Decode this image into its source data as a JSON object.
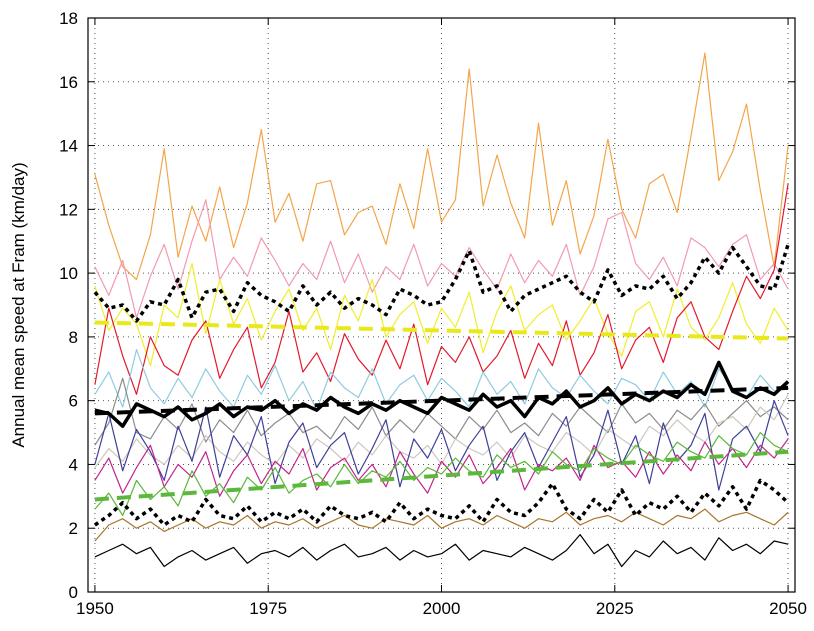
{
  "chart_data": {
    "type": "line",
    "y_label": "Annual mean speed at Fram (km/day)",
    "x": [
      1950,
      1952,
      1954,
      1956,
      1958,
      1960,
      1962,
      1964,
      1966,
      1968,
      1970,
      1972,
      1974,
      1976,
      1978,
      1980,
      1982,
      1984,
      1986,
      1988,
      1990,
      1992,
      1994,
      1996,
      1998,
      2000,
      2002,
      2004,
      2006,
      2008,
      2010,
      2012,
      2014,
      2016,
      2018,
      2020,
      2022,
      2024,
      2026,
      2028,
      2030,
      2032,
      2034,
      2036,
      2038,
      2040,
      2042,
      2044,
      2046,
      2048,
      2050
    ],
    "xlim": [
      1949,
      2051
    ],
    "xticks": [
      1950,
      1975,
      2000,
      2025,
      2050
    ],
    "ylim": [
      0,
      18
    ],
    "yticks": [
      0,
      2,
      4,
      6,
      8,
      10,
      12,
      14,
      16,
      18
    ],
    "grid": true,
    "series": [
      {
        "color": "#f4a54a",
        "style": "thin",
        "values": [
          13.1,
          11.5,
          10.2,
          9.8,
          11.2,
          13.9,
          10.5,
          12.1,
          11.0,
          12.7,
          10.8,
          12.2,
          14.5,
          11.6,
          12.5,
          11.0,
          12.8,
          12.9,
          11.2,
          11.9,
          12.1,
          10.9,
          12.8,
          11.4,
          13.9,
          11.6,
          12.3,
          16.4,
          12.1,
          13.7,
          12.2,
          11.1,
          14.7,
          11.5,
          12.9,
          10.6,
          11.8,
          14.2,
          12.0,
          11.1,
          12.8,
          13.1,
          11.9,
          14.3,
          16.9,
          12.9,
          13.8,
          15.3,
          12.6,
          10.2,
          14.0
        ]
      },
      {
        "color": "#f29ab0",
        "style": "thin",
        "values": [
          10.2,
          9.3,
          10.4,
          8.6,
          9.9,
          10.9,
          9.5,
          11.0,
          12.3,
          9.8,
          10.5,
          9.9,
          11.1,
          10.4,
          9.6,
          10.3,
          9.8,
          11.0,
          9.7,
          10.6,
          9.4,
          10.2,
          9.8,
          10.9,
          9.6,
          10.3,
          9.9,
          10.8,
          10.1,
          9.5,
          10.6,
          9.7,
          10.4,
          9.9,
          10.9,
          9.3,
          10.2,
          11.7,
          11.9,
          10.3,
          9.8,
          10.5,
          9.6,
          11.1,
          10.8,
          10.2,
          10.9,
          11.2,
          9.8,
          10.3,
          9.5
        ]
      },
      {
        "color": "#f0ee2a",
        "style": "thin",
        "values": [
          9.6,
          8.2,
          8.9,
          8.4,
          7.1,
          9.0,
          8.6,
          10.3,
          8.1,
          9.8,
          8.4,
          9.2,
          7.9,
          8.8,
          9.5,
          8.2,
          8.9,
          7.6,
          9.3,
          8.5,
          9.8,
          8.0,
          8.7,
          9.1,
          7.8,
          8.9,
          8.3,
          9.4,
          7.5,
          8.8,
          9.6,
          8.2,
          8.7,
          9.0,
          7.9,
          8.5,
          9.2,
          8.1,
          7.4,
          8.8,
          9.1,
          8.0,
          9.5,
          8.3,
          7.9,
          8.6,
          9.7,
          8.4,
          7.8,
          8.9,
          8.2
        ]
      },
      {
        "color": "#e3192c",
        "style": "thin",
        "values": [
          6.5,
          8.9,
          7.4,
          6.2,
          8.0,
          7.1,
          6.8,
          7.9,
          8.5,
          6.7,
          7.6,
          8.3,
          6.4,
          7.2,
          8.8,
          6.9,
          7.5,
          6.6,
          8.1,
          7.3,
          6.8,
          7.9,
          7.0,
          8.4,
          6.5,
          7.7,
          7.2,
          8.0,
          6.9,
          7.4,
          8.2,
          6.7,
          7.8,
          7.1,
          8.5,
          6.8,
          7.5,
          8.7,
          7.0,
          7.9,
          8.3,
          7.2,
          8.6,
          9.1,
          8.0,
          7.6,
          8.8,
          9.9,
          9.2,
          10.1,
          12.8
        ]
      },
      {
        "color": "#8fcbe0",
        "style": "thin",
        "values": [
          6.2,
          6.9,
          5.8,
          7.6,
          6.4,
          5.9,
          6.7,
          6.1,
          7.0,
          6.3,
          5.8,
          6.8,
          6.2,
          7.1,
          6.0,
          6.6,
          5.7,
          6.9,
          6.4,
          6.1,
          7.0,
          5.9,
          6.5,
          6.8,
          6.0,
          6.7,
          6.3,
          5.8,
          6.9,
          6.2,
          6.6,
          5.9,
          7.0,
          6.4,
          6.1,
          6.8,
          6.3,
          5.9,
          6.7,
          6.5,
          6.0,
          6.9,
          6.2,
          6.6,
          5.8,
          7.0,
          6.4,
          6.1,
          6.8,
          6.3,
          6.5
        ]
      },
      {
        "color": "#8c8c8c",
        "style": "thin",
        "values": [
          4.6,
          5.3,
          6.7,
          5.0,
          4.8,
          5.5,
          5.1,
          5.9,
          4.7,
          5.4,
          5.0,
          5.7,
          4.9,
          5.3,
          5.6,
          5.0,
          5.2,
          4.8,
          5.5,
          5.1,
          5.8,
          4.9,
          5.4,
          5.0,
          5.6,
          5.2,
          4.8,
          5.5,
          5.1,
          5.7,
          5.0,
          5.3,
          4.9,
          5.6,
          5.2,
          5.8,
          5.4,
          5.0,
          5.9,
          5.3,
          5.6,
          5.1,
          5.7,
          5.4,
          5.9,
          5.2,
          5.6,
          6.0,
          5.5,
          5.8,
          5.4
        ]
      },
      {
        "color": "#cfc7bc",
        "style": "thin",
        "values": [
          3.9,
          4.5,
          4.1,
          4.8,
          4.3,
          4.0,
          4.6,
          4.2,
          4.9,
          4.4,
          4.1,
          4.7,
          4.3,
          4.0,
          4.6,
          4.2,
          4.8,
          4.5,
          4.1,
          4.7,
          4.3,
          4.9,
          4.4,
          4.2,
          4.6,
          4.0,
          4.8,
          4.5,
          4.3,
          4.7,
          4.2,
          4.9,
          4.6,
          4.4,
          5.0,
          4.7,
          4.3,
          5.1,
          4.8,
          4.5,
          5.2,
          4.9,
          5.4,
          5.0,
          4.7,
          5.3,
          5.5,
          5.1,
          5.8,
          5.4,
          6.2
        ]
      },
      {
        "color": "#3d3f9a",
        "style": "thin",
        "values": [
          4.0,
          5.6,
          3.8,
          5.1,
          4.4,
          3.5,
          5.2,
          4.1,
          5.8,
          3.6,
          4.9,
          4.3,
          5.5,
          3.4,
          4.7,
          5.3,
          3.9,
          4.6,
          5.0,
          3.7,
          4.5,
          5.4,
          3.3,
          4.8,
          4.2,
          5.1,
          3.8,
          4.6,
          5.2,
          3.5,
          4.4,
          5.0,
          3.9,
          4.7,
          5.5,
          3.6,
          4.3,
          5.7,
          4.0,
          4.9,
          3.4,
          5.3,
          4.1,
          4.6,
          5.6,
          3.2,
          4.8,
          5.2,
          4.4,
          6.0,
          4.9
        ]
      },
      {
        "color": "#c2258c",
        "style": "thin",
        "values": [
          3.5,
          4.2,
          3.1,
          3.9,
          4.6,
          3.3,
          4.0,
          3.6,
          4.4,
          3.0,
          3.8,
          4.3,
          3.4,
          4.1,
          3.7,
          4.5,
          3.2,
          3.9,
          4.2,
          3.5,
          4.0,
          3.3,
          4.4,
          3.7,
          3.1,
          4.1,
          3.6,
          4.3,
          3.4,
          3.9,
          4.5,
          3.2,
          4.0,
          3.8,
          4.2,
          3.5,
          4.6,
          3.9,
          4.1,
          3.6,
          4.4,
          3.7,
          4.3,
          3.8,
          4.7,
          4.0,
          4.5,
          3.9,
          4.6,
          4.2,
          4.8
        ]
      },
      {
        "color": "#5cb83a",
        "style": "thin",
        "values": [
          2.6,
          3.1,
          2.4,
          3.5,
          2.9,
          3.3,
          2.7,
          3.8,
          3.0,
          3.4,
          2.8,
          3.6,
          3.2,
          3.9,
          3.1,
          3.5,
          3.7,
          3.3,
          4.0,
          3.4,
          3.8,
          3.6,
          4.1,
          3.5,
          3.9,
          3.7,
          4.2,
          3.8,
          3.6,
          4.3,
          3.9,
          4.1,
          3.7,
          4.4,
          4.0,
          3.8,
          4.5,
          4.2,
          4.0,
          4.6,
          4.3,
          4.1,
          4.7,
          4.4,
          4.2,
          4.9,
          4.5,
          4.3,
          5.0,
          4.6,
          4.4
        ]
      },
      {
        "color": "#a8742a",
        "style": "thin",
        "values": [
          1.6,
          2.1,
          2.3,
          2.0,
          2.2,
          1.9,
          2.1,
          2.3,
          2.0,
          2.2,
          2.1,
          2.4,
          2.0,
          2.2,
          2.1,
          2.3,
          2.0,
          2.2,
          2.4,
          2.1,
          2.0,
          2.3,
          2.2,
          2.1,
          2.4,
          2.0,
          2.2,
          2.3,
          2.1,
          2.4,
          2.2,
          2.0,
          2.3,
          2.2,
          2.5,
          2.1,
          2.3,
          2.4,
          2.2,
          2.5,
          2.3,
          2.1,
          2.4,
          2.3,
          2.6,
          2.2,
          2.4,
          2.5,
          2.3,
          2.1,
          2.5
        ]
      },
      {
        "color": "#000000",
        "style": "thin",
        "values": [
          1.1,
          1.3,
          1.5,
          1.2,
          1.4,
          0.8,
          1.1,
          1.3,
          1.0,
          1.2,
          1.4,
          0.9,
          1.2,
          1.3,
          1.1,
          1.4,
          1.0,
          1.3,
          1.5,
          1.1,
          1.2,
          1.4,
          1.0,
          1.3,
          1.1,
          1.2,
          1.5,
          1.0,
          1.3,
          1.2,
          1.1,
          1.4,
          1.2,
          1.0,
          1.3,
          1.8,
          1.2,
          1.5,
          0.8,
          1.3,
          1.1,
          1.6,
          1.2,
          1.4,
          1.0,
          1.7,
          1.3,
          1.5,
          1.2,
          1.6,
          1.5
        ]
      },
      {
        "color": "#000000",
        "style": "dotted",
        "values": [
          9.4,
          8.9,
          9.0,
          8.5,
          9.1,
          9.0,
          9.8,
          8.6,
          9.4,
          9.5,
          8.8,
          9.7,
          9.3,
          9.1,
          8.8,
          9.6,
          9.0,
          9.4,
          8.9,
          9.2,
          9.0,
          8.7,
          9.5,
          9.3,
          9.0,
          9.1,
          9.8,
          10.7,
          9.4,
          9.6,
          8.8,
          9.3,
          9.5,
          9.7,
          9.9,
          9.4,
          9.1,
          10.1,
          9.3,
          9.6,
          9.5,
          9.9,
          9.2,
          9.7,
          10.5,
          10.0,
          10.8,
          10.2,
          9.6,
          9.5,
          10.9
        ]
      },
      {
        "color": "#000000",
        "style": "dotted",
        "values": [
          2.1,
          2.4,
          2.8,
          2.3,
          2.6,
          2.1,
          2.4,
          2.2,
          2.9,
          2.4,
          2.3,
          2.7,
          2.2,
          2.5,
          2.3,
          2.6,
          2.2,
          2.7,
          2.4,
          2.3,
          2.5,
          2.2,
          2.8,
          2.3,
          2.6,
          2.4,
          2.3,
          2.7,
          2.2,
          2.9,
          2.5,
          2.4,
          2.8,
          3.4,
          2.6,
          2.3,
          2.9,
          2.5,
          3.2,
          2.4,
          2.8,
          2.6,
          3.0,
          2.5,
          3.1,
          2.7,
          3.3,
          2.6,
          3.5,
          3.2,
          2.8
        ]
      },
      {
        "color": "#000000",
        "style": "thick",
        "values": [
          5.7,
          5.6,
          5.2,
          5.9,
          5.7,
          5.5,
          5.8,
          5.4,
          5.6,
          5.9,
          5.5,
          5.8,
          5.7,
          6.0,
          5.6,
          5.9,
          5.7,
          6.1,
          5.8,
          5.6,
          5.9,
          5.7,
          6.0,
          5.8,
          5.6,
          6.1,
          5.9,
          5.7,
          6.2,
          5.8,
          6.0,
          5.5,
          6.1,
          5.9,
          6.3,
          5.8,
          6.0,
          6.4,
          5.9,
          6.2,
          6.0,
          6.3,
          6.1,
          6.5,
          6.2,
          7.2,
          6.3,
          6.1,
          6.4,
          6.2,
          6.6
        ]
      },
      {
        "color": "#000000",
        "style": "dashed",
        "x": [
          1950,
          2050
        ],
        "values": [
          5.6,
          6.4
        ]
      },
      {
        "color": "#e8e81a",
        "style": "dashed",
        "x": [
          1950,
          2050
        ],
        "values": [
          8.45,
          7.95
        ]
      },
      {
        "color": "#5cb83a",
        "style": "dashed",
        "x": [
          1950,
          2050
        ],
        "values": [
          2.9,
          4.4
        ]
      }
    ]
  }
}
